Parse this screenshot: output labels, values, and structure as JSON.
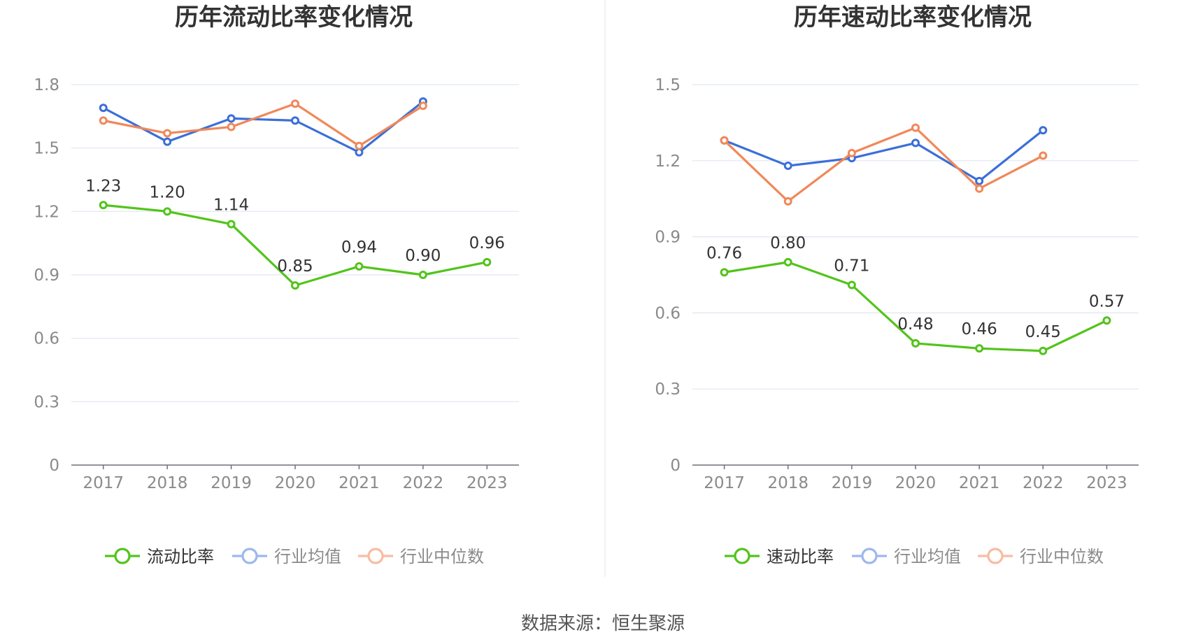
{
  "chart_data": [
    {
      "type": "line",
      "title": "历年流动比率变化情况",
      "categories": [
        "2017",
        "2018",
        "2019",
        "2020",
        "2021",
        "2022",
        "2023"
      ],
      "ylim": [
        0,
        1.8
      ],
      "yticks": [
        "0",
        "0.3",
        "0.6",
        "0.9",
        "1.2",
        "1.5",
        "1.8"
      ],
      "grid": true,
      "legend_position": "bottom",
      "series": [
        {
          "name": "流动比率",
          "color": "#52c41a",
          "values": [
            1.23,
            1.2,
            1.14,
            0.85,
            0.94,
            0.9,
            0.96
          ],
          "labels": [
            "1.23",
            "1.20",
            "1.14",
            "0.85",
            "0.94",
            "0.90",
            "0.96"
          ]
        },
        {
          "name": "行业均值",
          "color": "#3a6fd8",
          "values": [
            1.69,
            1.53,
            1.64,
            1.63,
            1.48,
            1.72,
            null
          ]
        },
        {
          "name": "行业中位数",
          "color": "#f0885a",
          "values": [
            1.63,
            1.57,
            1.6,
            1.71,
            1.51,
            1.7,
            null
          ]
        }
      ]
    },
    {
      "type": "line",
      "title": "历年速动比率变化情况",
      "categories": [
        "2017",
        "2018",
        "2019",
        "2020",
        "2021",
        "2022",
        "2023"
      ],
      "ylim": [
        0,
        1.5
      ],
      "yticks": [
        "0",
        "0.3",
        "0.6",
        "0.9",
        "1.2",
        "1.5"
      ],
      "grid": true,
      "legend_position": "bottom",
      "series": [
        {
          "name": "速动比率",
          "color": "#52c41a",
          "values": [
            0.76,
            0.8,
            0.71,
            0.48,
            0.46,
            0.45,
            0.57
          ],
          "labels": [
            "0.76",
            "0.80",
            "0.71",
            "0.48",
            "0.46",
            "0.45",
            "0.57"
          ]
        },
        {
          "name": "行业均值",
          "color": "#3a6fd8",
          "values": [
            1.28,
            1.18,
            1.21,
            1.27,
            1.12,
            1.32,
            null
          ]
        },
        {
          "name": "行业中位数",
          "color": "#f0885a",
          "values": [
            1.28,
            1.04,
            1.23,
            1.33,
            1.09,
            1.22,
            null
          ]
        }
      ]
    }
  ],
  "footer": {
    "source": "数据来源：恒生聚源"
  }
}
